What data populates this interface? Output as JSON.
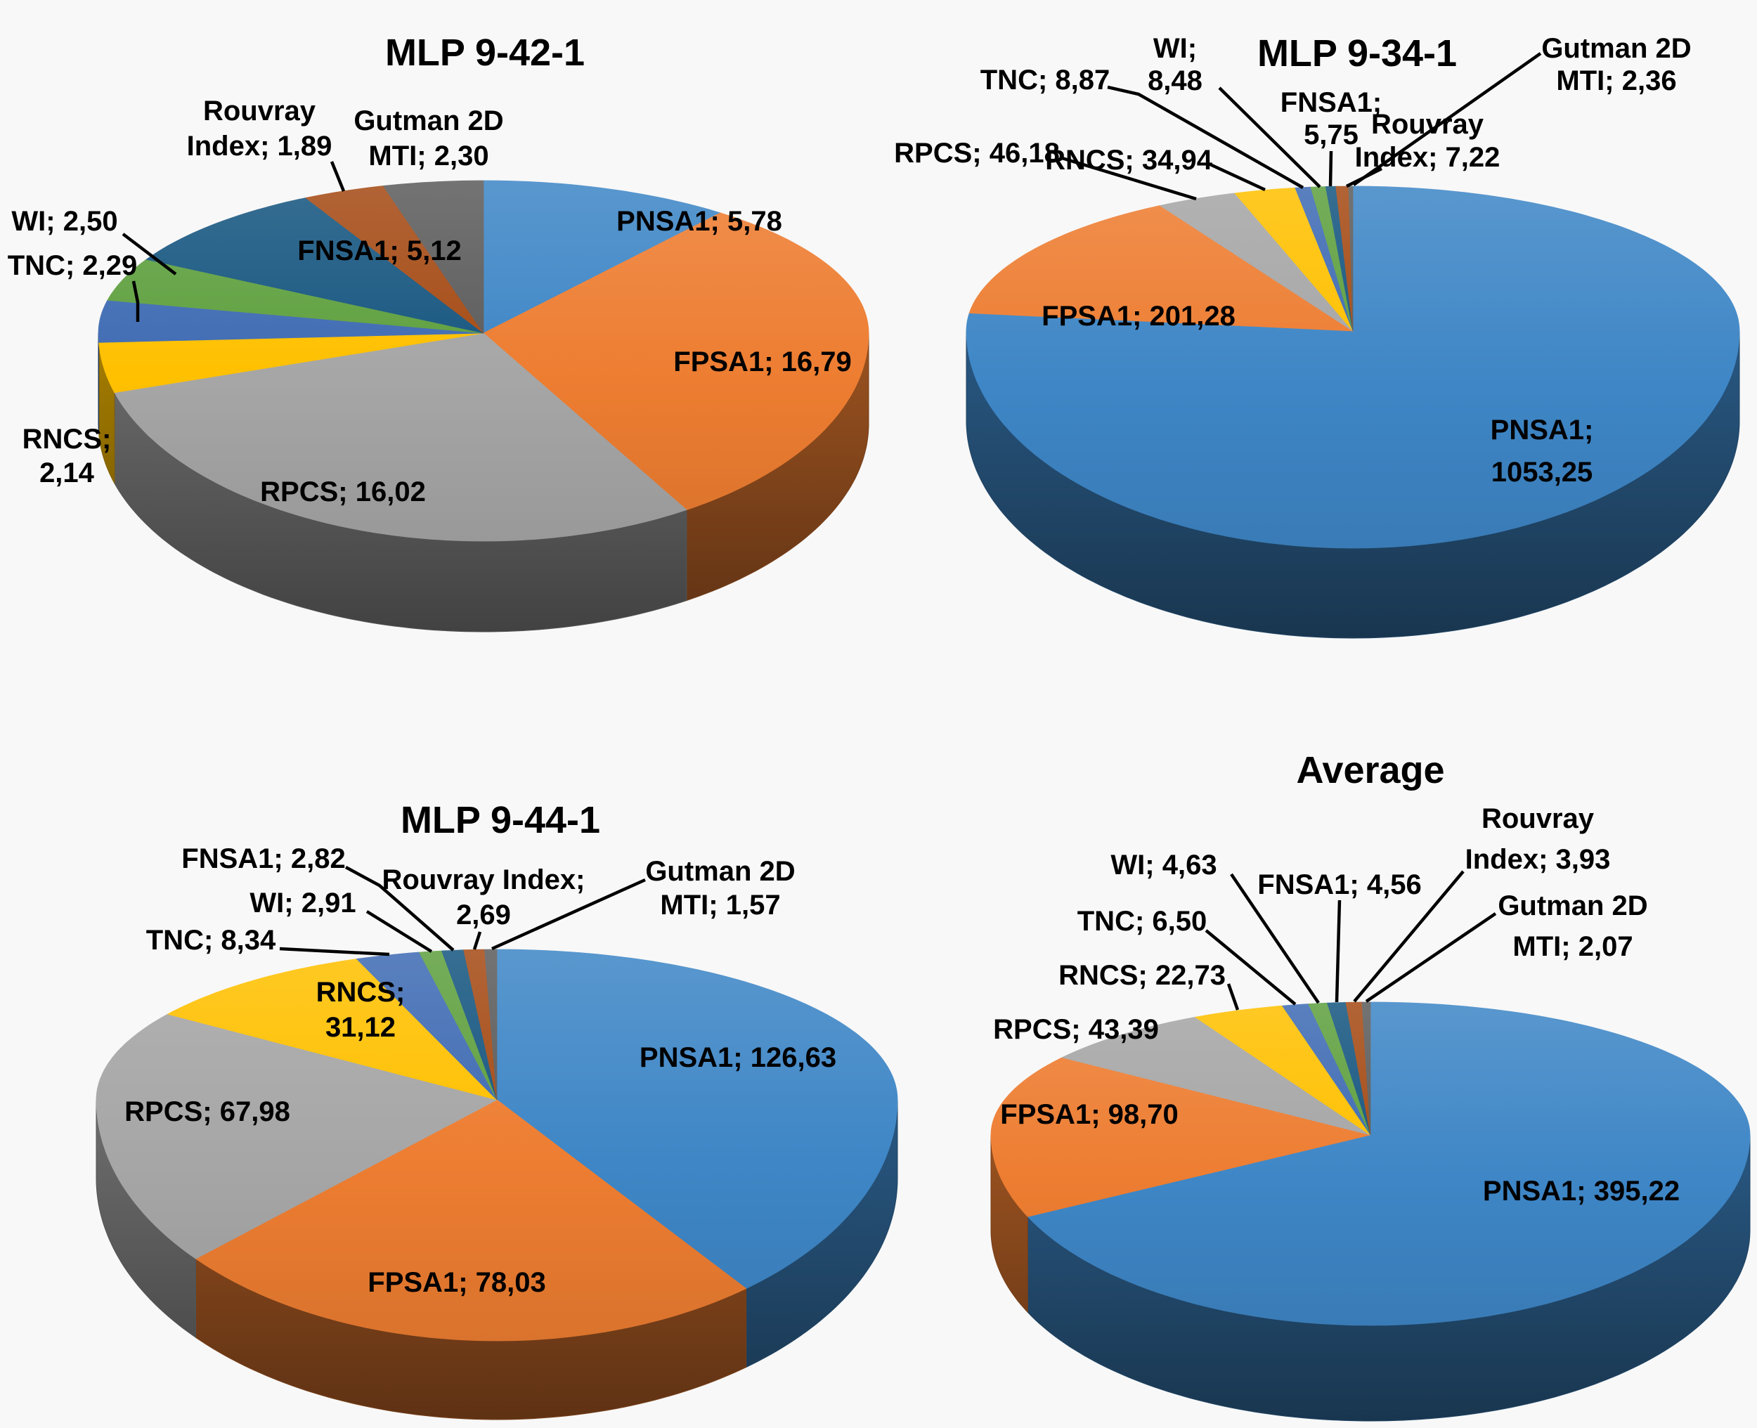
{
  "figure": {
    "background": "#f8f8f8",
    "text_color": "#000000",
    "leader_line_color": "#000000"
  },
  "colors": {
    "PNSA1": "#3E86C6",
    "FPSA1": "#ED7D31",
    "RPCS": "#A6A6A6",
    "RNCS": "#FFC000",
    "TNC": "#3F6BB3",
    "WI": "#5FA03F",
    "FNSA1": "#175680",
    "Rouvray Index": "#A54B15",
    "Gutman 2D MTI": "#5C5C5C"
  },
  "chart_data": [
    {
      "type": "pie",
      "style": "3d",
      "title": "MLP 9-42-1",
      "legend_position": "none",
      "slices": [
        {
          "name": "PNSA1",
          "value": 5.78,
          "label": "PNSA1; 5,78"
        },
        {
          "name": "FPSA1",
          "value": 16.79,
          "label": "FPSA1; 16,79"
        },
        {
          "name": "RPCS",
          "value": 16.02,
          "label": "RPCS; 16,02"
        },
        {
          "name": "RNCS",
          "value": 2.14,
          "label": "RNCS; 2,14"
        },
        {
          "name": "TNC",
          "value": 2.29,
          "label": "TNC; 2,29"
        },
        {
          "name": "WI",
          "value": 2.5,
          "label": "WI; 2,50"
        },
        {
          "name": "FNSA1",
          "value": 5.12,
          "label": "FNSA1; 5,12"
        },
        {
          "name": "Rouvray Index",
          "value": 1.89,
          "label": "Rouvray Index; 1,89"
        },
        {
          "name": "Gutman 2D MTI",
          "value": 2.3,
          "label": "Gutman 2D MTI; 2,30"
        }
      ]
    },
    {
      "type": "pie",
      "style": "3d",
      "title": "MLP 9-34-1",
      "legend_position": "none",
      "slices": [
        {
          "name": "PNSA1",
          "value": 1053.25,
          "label": "PNSA1; 1053,25"
        },
        {
          "name": "FPSA1",
          "value": 201.28,
          "label": "FPSA1; 201,28"
        },
        {
          "name": "RPCS",
          "value": 46.18,
          "label": "RPCS; 46,18"
        },
        {
          "name": "RNCS",
          "value": 34.94,
          "label": "RNCS; 34,94"
        },
        {
          "name": "TNC",
          "value": 8.87,
          "label": "TNC; 8,87"
        },
        {
          "name": "WI",
          "value": 8.48,
          "label": "WI; 8,48"
        },
        {
          "name": "FNSA1",
          "value": 5.75,
          "label": "FNSA1; 5,75"
        },
        {
          "name": "Rouvray Index",
          "value": 7.22,
          "label": "Rouvray Index; 7,22"
        },
        {
          "name": "Gutman 2D MTI",
          "value": 2.36,
          "label": "Gutman 2D MTI; 2,36"
        }
      ]
    },
    {
      "type": "pie",
      "style": "3d",
      "title": "MLP 9-44-1",
      "legend_position": "none",
      "slices": [
        {
          "name": "PNSA1",
          "value": 126.63,
          "label": "PNSA1; 126,63"
        },
        {
          "name": "FPSA1",
          "value": 78.03,
          "label": "FPSA1; 78,03"
        },
        {
          "name": "RPCS",
          "value": 67.98,
          "label": "RPCS; 67,98"
        },
        {
          "name": "RNCS",
          "value": 31.12,
          "label": "RNCS; 31,12"
        },
        {
          "name": "TNC",
          "value": 8.34,
          "label": "TNC; 8,34"
        },
        {
          "name": "WI",
          "value": 2.91,
          "label": "WI; 2,91"
        },
        {
          "name": "FNSA1",
          "value": 2.82,
          "label": "FNSA1; 2,82"
        },
        {
          "name": "Rouvray Index",
          "value": 2.69,
          "label": "Rouvray Index; 2,69"
        },
        {
          "name": "Gutman 2D MTI",
          "value": 1.57,
          "label": "Gutman 2D MTI; 1,57"
        }
      ]
    },
    {
      "type": "pie",
      "style": "3d",
      "title": "Average",
      "legend_position": "none",
      "slices": [
        {
          "name": "PNSA1",
          "value": 395.22,
          "label": "PNSA1; 395,22"
        },
        {
          "name": "FPSA1",
          "value": 98.7,
          "label": "FPSA1; 98,70"
        },
        {
          "name": "RPCS",
          "value": 43.39,
          "label": "RPCS; 43,39"
        },
        {
          "name": "RNCS",
          "value": 22.73,
          "label": "RNCS; 22,73"
        },
        {
          "name": "TNC",
          "value": 6.5,
          "label": "TNC; 6,50"
        },
        {
          "name": "WI",
          "value": 4.63,
          "label": "WI; 4,63"
        },
        {
          "name": "FNSA1",
          "value": 4.56,
          "label": "FNSA1; 4,56"
        },
        {
          "name": "Rouvray Index",
          "value": 3.93,
          "label": "Rouvray Index; 3,93"
        },
        {
          "name": "Gutman 2D MTI",
          "value": 2.07,
          "label": "Gutman 2D MTI; 2,07"
        }
      ]
    }
  ]
}
